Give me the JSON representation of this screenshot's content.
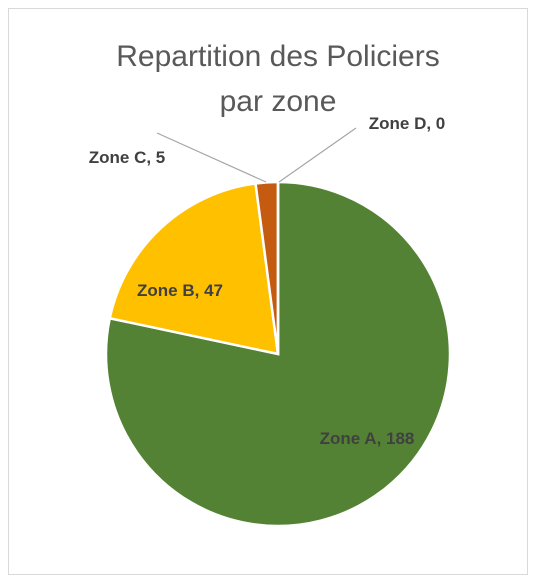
{
  "chart_data": {
    "type": "pie",
    "title": "Repartition des Policiers par zone",
    "categories": [
      "Zone A",
      "Zone B",
      "Zone C",
      "Zone D"
    ],
    "values": [
      188,
      47,
      5,
      0
    ],
    "value_labels": [
      "Zone A, 188",
      "Zone B, 47",
      "Zone C, 5",
      "Zone D, 0"
    ],
    "colors": [
      "#548235",
      "#ffc000",
      "#c55a11",
      "#4472c4"
    ]
  }
}
